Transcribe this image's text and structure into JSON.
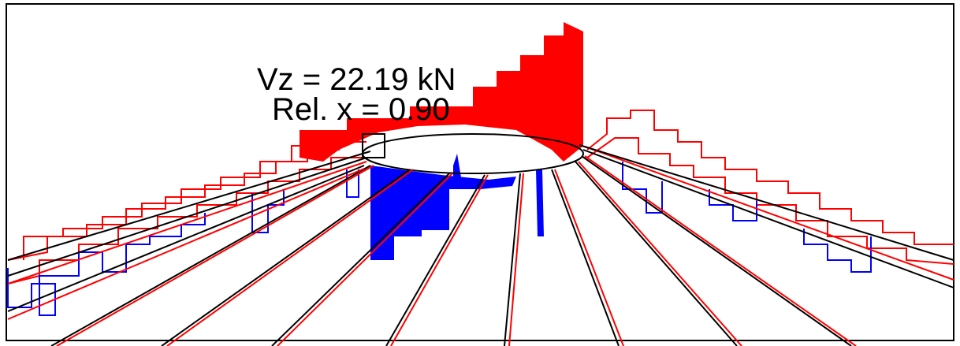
{
  "annotation": {
    "force": "Vz = 22.19 kN",
    "position": "Rel. x = 0.90"
  }
}
